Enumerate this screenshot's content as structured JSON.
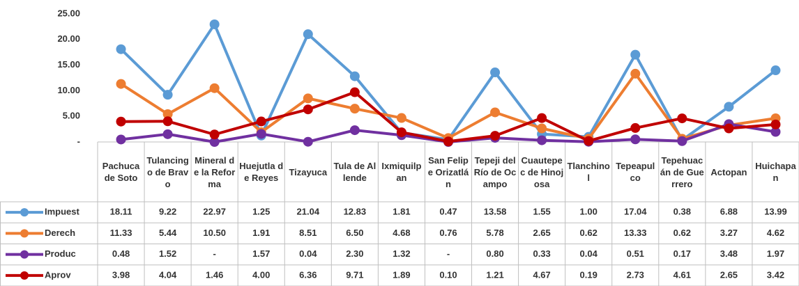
{
  "chart_data": {
    "type": "line",
    "categories": [
      "Pachuca de Soto",
      "Tulancingo de Bravo",
      "Mineral de la Reforma",
      "Huejutla de Reyes",
      "Tizayuca",
      "Tula de Allende",
      "Ixmiquilpan",
      "San Felipe Orizatlán",
      "Tepeji del Río de Ocampo",
      "Cuautepec de Hinojosa",
      "Tlanchinol",
      "Tepeapulco",
      "Tepehuacán de Guerrero",
      "Actopan",
      "Huichapan"
    ],
    "series": [
      {
        "name": "Impuest",
        "color": "#5b9bd5",
        "values": [
          18.11,
          9.22,
          22.97,
          1.25,
          21.04,
          12.83,
          1.81,
          0.47,
          13.58,
          1.55,
          1.0,
          17.04,
          0.38,
          6.88,
          13.99
        ],
        "value_labels": [
          "18.11",
          "9.22",
          "22.97",
          "1.25",
          "21.04",
          "12.83",
          "1.81",
          "0.47",
          "13.58",
          "1.55",
          "1.00",
          "17.04",
          "0.38",
          "6.88",
          "13.99"
        ]
      },
      {
        "name": "Derech",
        "color": "#ed7d31",
        "values": [
          11.33,
          5.44,
          10.5,
          1.91,
          8.51,
          6.5,
          4.68,
          0.76,
          5.78,
          2.65,
          0.62,
          13.33,
          0.62,
          3.27,
          4.62
        ],
        "value_labels": [
          "11.33",
          "5.44",
          "10.50",
          "1.91",
          "8.51",
          "6.50",
          "4.68",
          "0.76",
          "5.78",
          "2.65",
          "0.62",
          "13.33",
          "0.62",
          "3.27",
          "4.62"
        ]
      },
      {
        "name": "Produc",
        "color": "#7030a0",
        "values": [
          0.48,
          1.52,
          0,
          1.57,
          0.04,
          2.3,
          1.32,
          0,
          0.8,
          0.33,
          0.04,
          0.51,
          0.17,
          3.48,
          1.97
        ],
        "value_labels": [
          "0.48",
          "1.52",
          "-",
          "1.57",
          "0.04",
          "2.30",
          "1.32",
          "-",
          "0.80",
          "0.33",
          "0.04",
          "0.51",
          "0.17",
          "3.48",
          "1.97"
        ]
      },
      {
        "name": "Aprov",
        "color": "#c00000",
        "values": [
          3.98,
          4.04,
          1.46,
          4.0,
          6.36,
          9.71,
          1.89,
          0.1,
          1.21,
          4.67,
          0.19,
          2.73,
          4.61,
          2.65,
          3.42
        ],
        "value_labels": [
          "3.98",
          "4.04",
          "1.46",
          "4.00",
          "6.36",
          "9.71",
          "1.89",
          "0.10",
          "1.21",
          "4.67",
          "0.19",
          "2.73",
          "4.61",
          "2.65",
          "3.42"
        ]
      }
    ],
    "ylim": [
      0,
      25
    ],
    "yticks": [
      {
        "value": 0,
        "label": "-"
      },
      {
        "value": 5,
        "label": "5.00"
      },
      {
        "value": 10,
        "label": "10.00"
      },
      {
        "value": 15,
        "label": "15.00"
      },
      {
        "value": 20,
        "label": "20.00"
      },
      {
        "value": 25,
        "label": "25.00"
      }
    ],
    "grid": false
  }
}
